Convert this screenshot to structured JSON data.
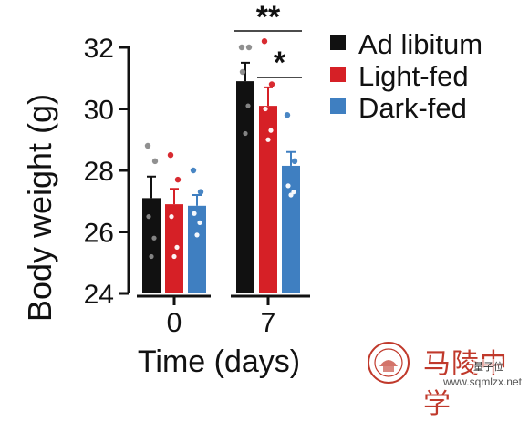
{
  "chart_data": {
    "type": "bar",
    "categories": [
      "0",
      "7"
    ],
    "series": [
      {
        "name": "Ad libitum",
        "color": "#111111",
        "values": [
          27.1,
          30.9
        ],
        "errors": [
          0.7,
          0.6
        ],
        "points": [
          [
            28.8,
            28.3,
            26.5,
            25.8,
            25.2
          ],
          [
            32.0,
            32.0,
            31.2,
            30.1,
            29.2
          ]
        ]
      },
      {
        "name": "Light-fed",
        "color": "#d62026",
        "values": [
          26.9,
          30.1
        ],
        "errors": [
          0.5,
          0.6
        ],
        "points": [
          [
            28.5,
            27.7,
            26.5,
            25.5,
            25.2
          ],
          [
            32.2,
            30.8,
            30.0,
            29.3,
            29.0
          ]
        ]
      },
      {
        "name": "Dark-fed",
        "color": "#3f7fc1",
        "values": [
          26.85,
          28.15
        ],
        "errors": [
          0.35,
          0.45
        ],
        "points": [
          [
            28.0,
            27.3,
            26.6,
            26.3,
            25.9
          ],
          [
            29.8,
            28.3,
            27.5,
            27.3,
            27.2
          ]
        ]
      }
    ],
    "xlabel": "Time (days)",
    "ylabel": "Body weight (g)",
    "ylim": [
      24,
      32
    ],
    "yticks": [
      "24",
      "26",
      "28",
      "30",
      "32"
    ],
    "grid": false,
    "legend_position": "top-right",
    "annotations": [
      {
        "text": "**",
        "between": [
          "Ad libitum",
          "Dark-fed"
        ],
        "category": "7"
      },
      {
        "text": "*",
        "between": [
          "Light-fed",
          "Dark-fed"
        ],
        "category": "7"
      }
    ]
  },
  "watermark": {
    "title": "马陵中学",
    "url": "www.sqmlzx.net",
    "tag": "量子位"
  }
}
